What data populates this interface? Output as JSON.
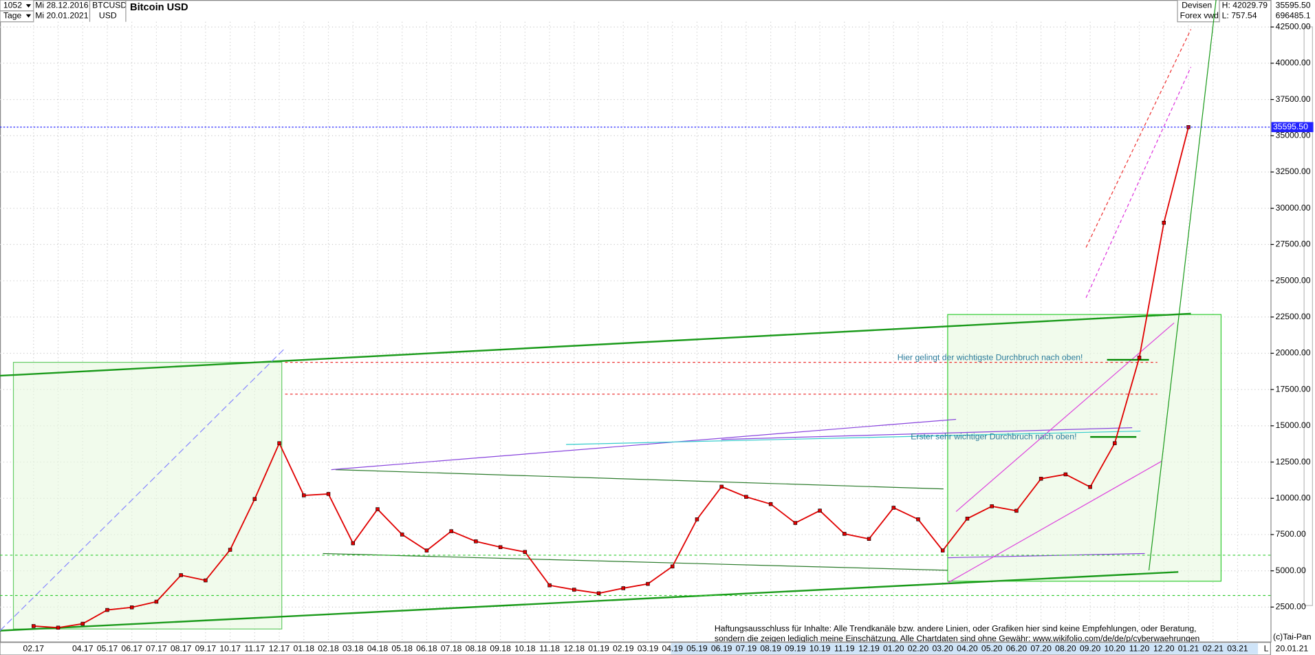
{
  "header": {
    "count": "1052",
    "start": "Mi 28.12.2016",
    "end": "Mi 20.01.2021",
    "period": "Tage",
    "symbol": "BTCUSD",
    "currency": "USD",
    "market": "Devisen",
    "source": "Forex vwd",
    "high": "H: 42029.79",
    "low": "L: 757.54",
    "last": "35595.50",
    "volume": "696485.1",
    "date": "20.01.21",
    "axis_mode": "L",
    "copyright": "(c)Tai-Pan"
  },
  "chart_data": {
    "type": "line",
    "title": "Bitcoin USD",
    "categories": [
      "02.17",
      null,
      "04.17",
      "05.17",
      "06.17",
      "07.17",
      "08.17",
      "09.17",
      "10.17",
      "11.17",
      "12.17",
      "01.18",
      "02.18",
      "03.18",
      "04.18",
      "05.18",
      "06.18",
      "07.18",
      "08.18",
      "09.18",
      "10.18",
      "11.18",
      "12.18",
      "01.19",
      "02.19",
      "03.19",
      "04.19",
      "05.19",
      "06.19",
      "07.19",
      "08.19",
      "09.19",
      "10.19",
      "11.19",
      "12.19",
      "01.20",
      "02.20",
      "03.20",
      "04.20",
      "05.20",
      "06.20",
      "07.20",
      "08.20",
      "09.20",
      "10.20",
      "11.20",
      "12.20",
      "01.21",
      "02.21",
      "03.21"
    ],
    "series": [
      {
        "name": "BTCUSD",
        "color": "#e00000",
        "values": [
          1190,
          1080,
          1350,
          2300,
          2480,
          2870,
          4700,
          4340,
          6450,
          9950,
          13800,
          10200,
          10300,
          6900,
          9250,
          7500,
          6400,
          7730,
          7030,
          6630,
          6300,
          4000,
          3700,
          3450,
          3800,
          4100,
          5300,
          8550,
          10800,
          10100,
          9600,
          8300,
          9150,
          7550,
          7200,
          9350,
          8550,
          6400,
          8600,
          9450,
          9140,
          11350,
          11650,
          10780,
          13800,
          19700,
          29000,
          35595.5,
          null,
          null
        ]
      }
    ],
    "ylim": [
      120,
      44360
    ],
    "yticks": [
      {
        "value": 2500,
        "label": "2500.00"
      },
      {
        "value": 5000,
        "label": "5000.00"
      },
      {
        "value": 7500,
        "label": "7500.00"
      },
      {
        "value": 10000,
        "label": "10000.00"
      },
      {
        "value": 12500,
        "label": "12500.00"
      },
      {
        "value": 15000,
        "label": "15000.00"
      },
      {
        "value": 17500,
        "label": "17500.00"
      },
      {
        "value": 20000,
        "label": "20000.00"
      },
      {
        "value": 22500,
        "label": "22500.00"
      },
      {
        "value": 25000,
        "label": "25000.00"
      },
      {
        "value": 27500,
        "label": "27500.00"
      },
      {
        "value": 30000,
        "label": "30000.00"
      },
      {
        "value": 32500,
        "label": "32500.00"
      },
      {
        "value": 35000,
        "label": "35000.00"
      },
      {
        "value": 37500,
        "label": "37500.00"
      },
      {
        "value": 40000,
        "label": "40000.00"
      },
      {
        "value": 42500,
        "label": "42500.00"
      }
    ],
    "current": {
      "value": 35595.5,
      "label": "35595.50"
    },
    "grid": true,
    "annotations": [
      "Hier gelingt der wichtigste Durchbruch nach oben!",
      "Erster sehr wichtiger Durchbruch nach oben!"
    ],
    "disclaimer": [
      "Haftungsausschluss für Inhalte: Alle Trendkanäle bzw. andere Linien, oder Grafiken hier sind keine Empfehlungen, oder Beratung,",
      "sondern die zeigen lediglich meine  Einschätzung. Alle Chartdaten sind ohne Gewähr:  www.wikifolio.com/de/de/p/cyberwaehrungen"
    ]
  }
}
